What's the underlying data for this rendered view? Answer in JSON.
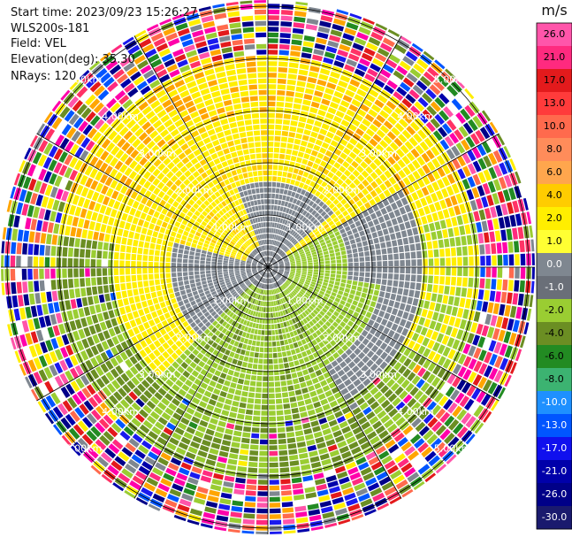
{
  "info": {
    "start_time": "Start time: 2023/09/23 15:26:27",
    "instrument": "WLS200s-181",
    "field": "Field: VEL",
    "elevation": "Elevation(deg): 35.30",
    "nrays": "NRays: 120"
  },
  "chart_data": {
    "type": "heatmap",
    "projection": "polar PPI",
    "field": "VEL",
    "rays": 120,
    "range_rings": [
      "1.00km",
      "2.00km",
      "3.00km",
      "4.00km",
      "5.00km"
    ],
    "colorbar": {
      "unit": "m/s",
      "tick_labels": [
        "26.0",
        "21.0",
        "17.0",
        "13.0",
        "10.0",
        "8.0",
        "6.0",
        "4.0",
        "2.0",
        "1.0",
        "0.0",
        "-1.0",
        "-2.0",
        "-4.0",
        "-6.0",
        "-8.0",
        "-10.0",
        "-13.0",
        "-17.0",
        "-21.0",
        "-26.0",
        "-30.0"
      ],
      "colors": [
        "#ff55aa",
        "#ff2a7f",
        "#e31a1c",
        "#ff3b3b",
        "#ff6a4d",
        "#ff8c5a",
        "#ffa64d",
        "#ffcc00",
        "#ffee00",
        "#ffff33",
        "#7f8790",
        "#6a6f78",
        "#9acd32",
        "#6b8e23",
        "#228b22",
        "#3cb371",
        "#1e90ff",
        "#0055ff",
        "#1010ee",
        "#0000aa",
        "#000088",
        "#1a1a6e"
      ]
    }
  }
}
